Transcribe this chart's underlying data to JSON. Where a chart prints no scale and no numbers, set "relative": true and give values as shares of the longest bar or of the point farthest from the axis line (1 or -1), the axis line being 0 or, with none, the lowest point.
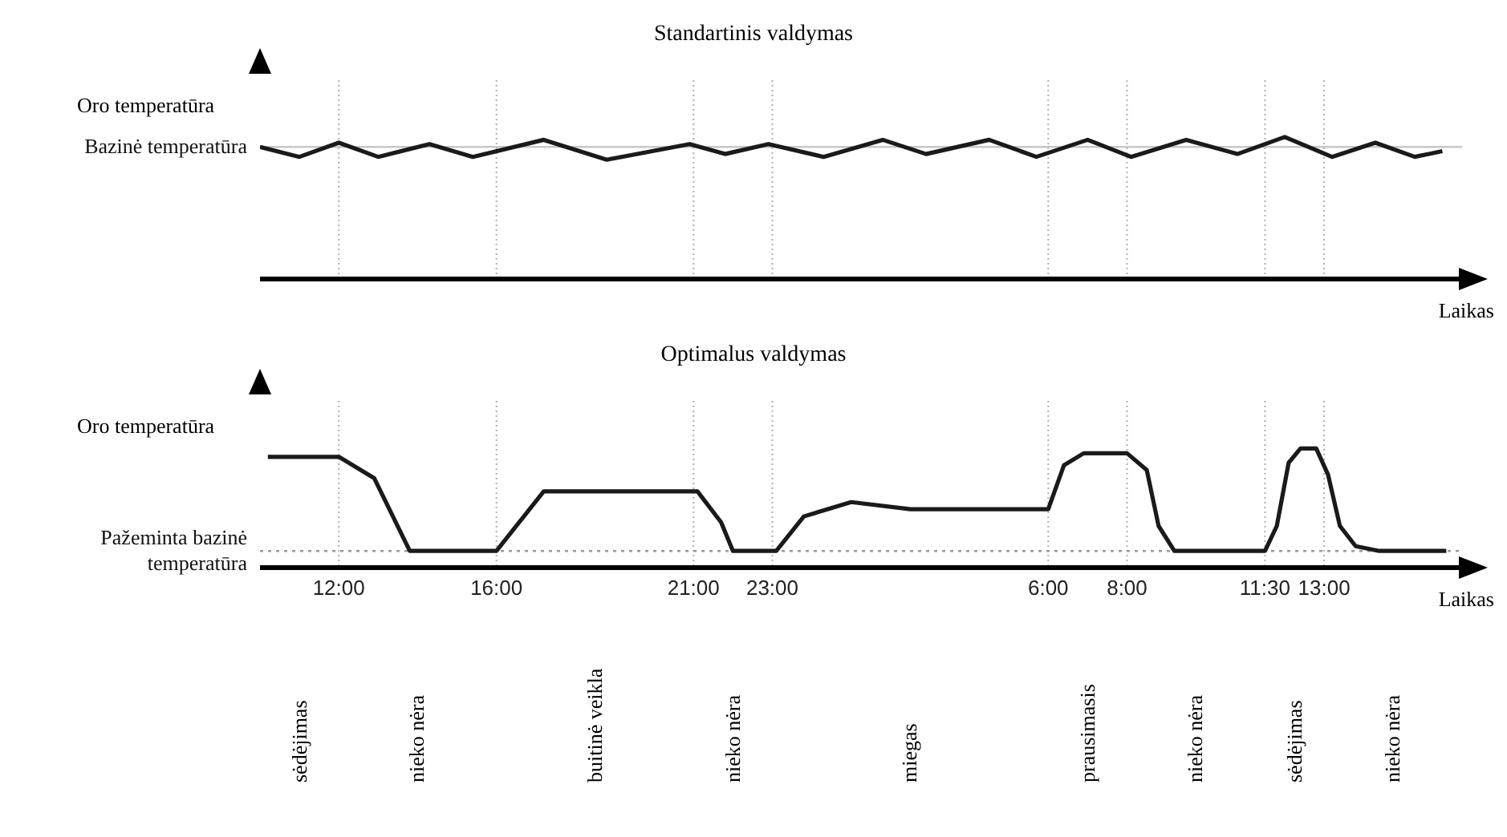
{
  "chart_data": [
    {
      "type": "line",
      "title": "Standartinis valdymas",
      "ylabel": "Oro temperatūra",
      "xlabel": "Laikas",
      "relative": true,
      "grid": "x",
      "tick_labels": false,
      "xlim": [
        "2000-01-01T10:00",
        "2000-01-02T16:30"
      ],
      "xticks": [
        "2000-01-01T12:00",
        "2000-01-01T16:00",
        "2000-01-01T21:00",
        "2000-01-01T23:00",
        "2000-01-02T06:00",
        "2000-01-02T08:00",
        "2000-01-02T11:30",
        "2000-01-02T13:00"
      ],
      "ref_lines": [
        {
          "axis": "y",
          "value": 0.93,
          "label": "Bazinė temperatūra",
          "color": "#c8c8c8"
        }
      ],
      "x": [
        "2000-01-01T10:00",
        "2000-01-01T11:00",
        "2000-01-01T12:00",
        "2000-01-01T13:00",
        "2000-01-01T14:18",
        "2000-01-01T15:24",
        "2000-01-01T17:12",
        "2000-01-01T18:48",
        "2000-01-01T20:54",
        "2000-01-01T21:48",
        "2000-01-01T22:54",
        "2000-01-02T00:18",
        "2000-01-02T01:48",
        "2000-01-02T02:54",
        "2000-01-02T04:30",
        "2000-01-02T05:42",
        "2000-01-02T07:00",
        "2000-01-02T08:06",
        "2000-01-02T09:30",
        "2000-01-02T10:48",
        "2000-01-02T12:00",
        "2000-01-02T13:12",
        "2000-01-02T14:18",
        "2000-01-02T15:18",
        "2000-01-02T16:00"
      ],
      "series": [
        {
          "color": "#1a1a1a",
          "values": [
            0.93,
            0.86,
            0.96,
            0.86,
            0.95,
            0.86,
            0.98,
            0.84,
            0.95,
            0.88,
            0.95,
            0.86,
            0.98,
            0.88,
            0.98,
            0.86,
            0.98,
            0.86,
            0.98,
            0.88,
            1.0,
            0.86,
            0.96,
            0.86,
            0.9
          ]
        }
      ]
    },
    {
      "type": "line",
      "title": "Optimalus valdymas",
      "ylabel": "Oro temperatūra",
      "xlabel": "Laikas",
      "relative": true,
      "grid": "x",
      "xlim": [
        "2000-01-01T10:00",
        "2000-01-02T16:30"
      ],
      "xticks": [
        {
          "value": "2000-01-01T12:00",
          "label": "12:00"
        },
        {
          "value": "2000-01-01T16:00",
          "label": "16:00"
        },
        {
          "value": "2000-01-01T21:00",
          "label": "21:00"
        },
        {
          "value": "2000-01-01T23:00",
          "label": "23:00"
        },
        {
          "value": "2000-01-02T06:00",
          "label": "6:00"
        },
        {
          "value": "2000-01-02T08:00",
          "label": "8:00"
        },
        {
          "value": "2000-01-02T11:30",
          "label": "11:30"
        },
        {
          "value": "2000-01-02T13:00",
          "label": "13:00"
        }
      ],
      "ref_lines": [
        {
          "axis": "y",
          "value": 0.14,
          "label": "Pažeminta bazinė temperatūra",
          "color": "#9a9a9a",
          "line_style": "dotted"
        }
      ],
      "annotations": [
        "sėdėjimas",
        "nieko nėra",
        "buitinė veikla",
        "nieko nėra",
        "miegas",
        "prausimasis",
        "nieko nėra",
        "sėdėjimas",
        "nieko nėra"
      ],
      "x": [
        "2000-01-01T10:12",
        "2000-01-01T12:00",
        "2000-01-01T12:54",
        "2000-01-01T13:48",
        "2000-01-01T16:00",
        "2000-01-01T17:12",
        "2000-01-01T21:06",
        "2000-01-01T21:42",
        "2000-01-01T22:00",
        "2000-01-01T23:06",
        "2000-01-01T23:48",
        "2000-01-02T01:00",
        "2000-01-02T02:30",
        "2000-01-02T06:00",
        "2000-01-02T06:24",
        "2000-01-02T06:54",
        "2000-01-02T08:00",
        "2000-01-02T08:30",
        "2000-01-02T08:48",
        "2000-01-02T09:12",
        "2000-01-02T11:30",
        "2000-01-02T11:48",
        "2000-01-02T12:06",
        "2000-01-02T12:24",
        "2000-01-02T12:48",
        "2000-01-02T13:06",
        "2000-01-02T13:24",
        "2000-01-02T13:48",
        "2000-01-02T14:24",
        "2000-01-02T16:06"
      ],
      "series": [
        {
          "color": "#1a1a1a",
          "values": [
            0.93,
            0.93,
            0.75,
            0.14,
            0.14,
            0.64,
            0.64,
            0.38,
            0.14,
            0.14,
            0.43,
            0.55,
            0.49,
            0.49,
            0.86,
            0.96,
            0.96,
            0.82,
            0.35,
            0.14,
            0.14,
            0.35,
            0.88,
            1.0,
            1.0,
            0.78,
            0.35,
            0.18,
            0.14,
            0.14
          ]
        }
      ]
    }
  ]
}
